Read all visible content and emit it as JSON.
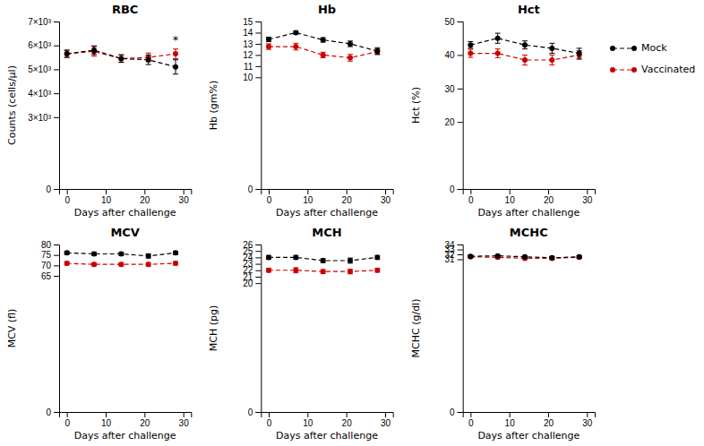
{
  "chart_data": [
    {
      "type": "line",
      "title": "RBC",
      "xlabel": "Days after challenge",
      "ylabel": "Counts (cells/μl)",
      "x": [
        0,
        7,
        14,
        21,
        28
      ],
      "xlim": [
        -2,
        32
      ],
      "xticks": [
        0,
        10,
        20,
        30
      ],
      "ylim": [
        0,
        7000
      ],
      "yticks": [
        0,
        {
          "value": 3000,
          "label": "3×10³"
        },
        {
          "value": 4000,
          "label": "4×10³"
        },
        {
          "value": 5000,
          "label": "5×10³"
        },
        {
          "value": 6000,
          "label": "6×10³"
        },
        {
          "value": 7000,
          "label": "7×10³"
        }
      ],
      "grid": false,
      "marker": "circle",
      "line_style": "dashed",
      "series": [
        {
          "color": "#000000",
          "values": [
            5650,
            5800,
            5450,
            5400,
            5100
          ],
          "errors": [
            150,
            180,
            160,
            200,
            300
          ]
        },
        {
          "color": "#cc0000",
          "values": [
            5650,
            5750,
            5450,
            5500,
            5650
          ],
          "errors": [
            150,
            200,
            150,
            180,
            200
          ]
        }
      ],
      "annotations": [
        {
          "text": "*",
          "x": 28,
          "y": 6050
        }
      ]
    },
    {
      "type": "line",
      "title": "Hb",
      "xlabel": "Days after challenge",
      "ylabel": "Hb (gm%)",
      "x": [
        0,
        7,
        14,
        21,
        28
      ],
      "xlim": [
        -2,
        32
      ],
      "xticks": [
        0,
        10,
        20,
        30
      ],
      "ylim": [
        0,
        15
      ],
      "yticks": [
        0,
        10,
        11,
        12,
        13,
        14,
        15
      ],
      "grid": false,
      "marker": "circle",
      "line_style": "dashed",
      "series": [
        {
          "color": "#000000",
          "values": [
            13.4,
            14.0,
            13.35,
            13.0,
            12.35
          ],
          "errors": [
            0.2,
            0.15,
            0.2,
            0.25,
            0.3
          ]
        },
        {
          "color": "#cc0000",
          "values": [
            12.75,
            12.75,
            12.0,
            11.75,
            12.3
          ],
          "errors": [
            0.25,
            0.3,
            0.25,
            0.3,
            0.25
          ]
        }
      ]
    },
    {
      "type": "line",
      "title": "Hct",
      "xlabel": "Days after challenge",
      "ylabel": "Hct (%)",
      "x": [
        0,
        7,
        14,
        21,
        28
      ],
      "xlim": [
        -2,
        32
      ],
      "xticks": [
        0,
        10,
        20,
        30
      ],
      "ylim": [
        0,
        50
      ],
      "yticks": [
        0,
        20,
        30,
        40,
        50
      ],
      "grid": false,
      "marker": "circle",
      "line_style": "dashed",
      "legend": "right",
      "series": [
        {
          "name": "Mock",
          "color": "#000000",
          "values": [
            43.0,
            45.0,
            43.0,
            42.0,
            40.5
          ],
          "errors": [
            1.0,
            1.5,
            1.2,
            1.5,
            1.5
          ]
        },
        {
          "name": "Vaccinated",
          "color": "#cc0000",
          "values": [
            40.5,
            40.5,
            38.5,
            38.5,
            40.0
          ],
          "errors": [
            1.2,
            1.3,
            1.5,
            1.5,
            1.3
          ]
        }
      ]
    },
    {
      "type": "line",
      "title": "MCV",
      "xlabel": "Days after challenge",
      "ylabel": "MCV (fl)",
      "x": [
        0,
        7,
        14,
        21,
        28
      ],
      "xlim": [
        -2,
        32
      ],
      "xticks": [
        0,
        10,
        20,
        30
      ],
      "ylim": [
        0,
        80
      ],
      "yticks": [
        0,
        65,
        70,
        75,
        80
      ],
      "grid": false,
      "marker": "circle",
      "line_style": "dashed",
      "series": [
        {
          "color": "#000000",
          "values": [
            76.0,
            75.5,
            75.5,
            74.5,
            76.0
          ],
          "errors": [
            0.8,
            0.8,
            0.8,
            1.0,
            0.8
          ]
        },
        {
          "color": "#cc0000",
          "values": [
            71.0,
            70.5,
            70.5,
            70.5,
            71.0
          ],
          "errors": [
            0.8,
            0.8,
            0.8,
            0.8,
            0.8
          ]
        }
      ]
    },
    {
      "type": "line",
      "title": "MCH",
      "xlabel": "Days after challenge",
      "ylabel": "MCH (pg)",
      "x": [
        0,
        7,
        14,
        21,
        28
      ],
      "xlim": [
        -2,
        32
      ],
      "xticks": [
        0,
        10,
        20,
        30
      ],
      "ylim": [
        0,
        26
      ],
      "yticks": [
        0,
        20,
        21,
        22,
        23,
        24,
        25,
        26
      ],
      "grid": false,
      "marker": "circle",
      "line_style": "dashed",
      "series": [
        {
          "color": "#000000",
          "values": [
            24.0,
            24.0,
            23.5,
            23.5,
            24.0
          ],
          "errors": [
            0.3,
            0.3,
            0.3,
            0.4,
            0.3
          ]
        },
        {
          "color": "#cc0000",
          "values": [
            22.0,
            22.0,
            21.8,
            21.8,
            22.0
          ],
          "errors": [
            0.3,
            0.4,
            0.3,
            0.35,
            0.3
          ]
        }
      ]
    },
    {
      "type": "line",
      "title": "MCHC",
      "xlabel": "Days after challenge",
      "ylabel": "MCHC (g/dl)",
      "x": [
        0,
        7,
        14,
        21,
        28
      ],
      "xlim": [
        -2,
        32
      ],
      "xticks": [
        0,
        10,
        20,
        30
      ],
      "ylim": [
        0,
        34
      ],
      "yticks": [
        0,
        31,
        32,
        33,
        34
      ],
      "grid": false,
      "marker": "circle",
      "line_style": "dashed",
      "series": [
        {
          "color": "#000000",
          "values": [
            31.6,
            31.7,
            31.5,
            31.3,
            31.5
          ],
          "errors": [
            0.25,
            0.2,
            0.25,
            0.25,
            0.2
          ]
        },
        {
          "color": "#cc0000",
          "values": [
            31.5,
            31.4,
            31.2,
            31.2,
            31.4
          ],
          "errors": [
            0.25,
            0.25,
            0.25,
            0.25,
            0.25
          ]
        }
      ]
    }
  ]
}
